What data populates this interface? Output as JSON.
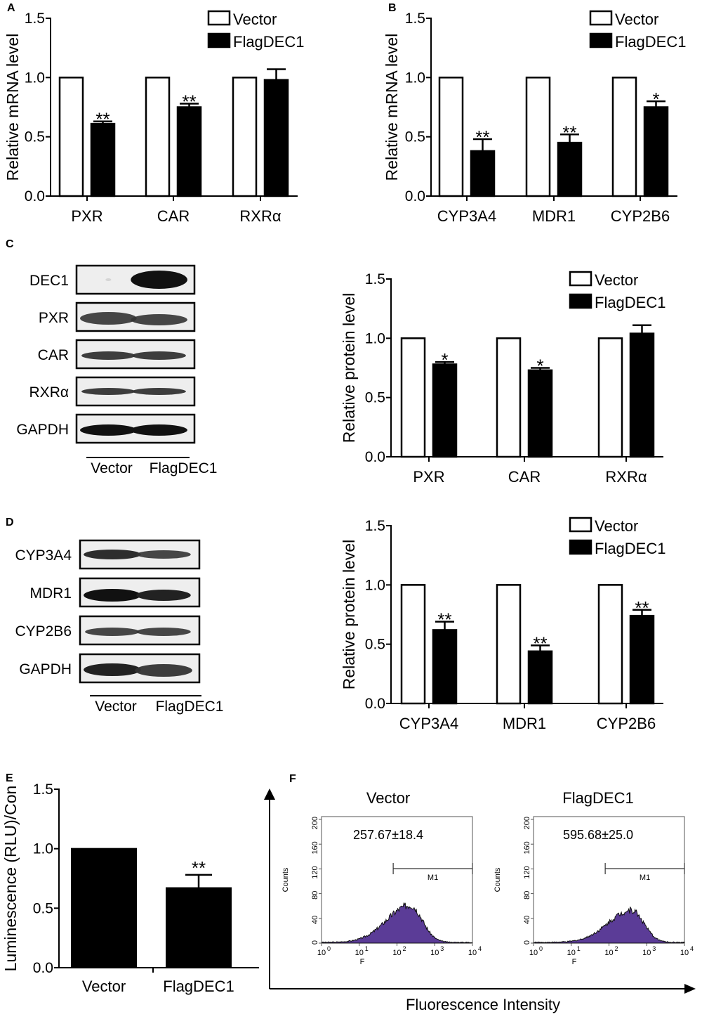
{
  "panels": {
    "A": "A",
    "B": "B",
    "C": "C",
    "D": "D",
    "E": "E",
    "F": "F"
  },
  "chart_data": [
    {
      "id": "A",
      "type": "bar",
      "ylabel": "Relative mRNA level",
      "ylim": [
        0,
        1.5
      ],
      "yticks": [
        "0.0",
        "0.5",
        "1.0",
        "1.5"
      ],
      "categories": [
        "PXR",
        "CAR",
        "RXRα"
      ],
      "legend": [
        "Vector",
        "FlagDEC1"
      ],
      "legend_position": "top-right",
      "series": [
        {
          "name": "Vector",
          "values": [
            1.0,
            1.0,
            1.0
          ],
          "errors": [
            0,
            0,
            0
          ],
          "fill": "#ffffff"
        },
        {
          "name": "FlagDEC1",
          "values": [
            0.61,
            0.75,
            0.98
          ],
          "errors": [
            0.02,
            0.03,
            0.09
          ],
          "fill": "#000000"
        }
      ],
      "significance": [
        "**",
        "**",
        ""
      ]
    },
    {
      "id": "B",
      "type": "bar",
      "ylabel": "Relative mRNA level",
      "ylim": [
        0,
        1.5
      ],
      "yticks": [
        "0.0",
        "0.5",
        "1.0",
        "1.5"
      ],
      "categories": [
        "CYP3A4",
        "MDR1",
        "CYP2B6"
      ],
      "legend": [
        "Vector",
        "FlagDEC1"
      ],
      "legend_position": "top-right",
      "series": [
        {
          "name": "Vector",
          "values": [
            1.0,
            1.0,
            1.0
          ],
          "errors": [
            0,
            0,
            0
          ],
          "fill": "#ffffff"
        },
        {
          "name": "FlagDEC1",
          "values": [
            0.38,
            0.45,
            0.75
          ],
          "errors": [
            0.1,
            0.07,
            0.05
          ],
          "fill": "#000000"
        }
      ],
      "significance": [
        "**",
        "**",
        "*"
      ]
    },
    {
      "id": "C",
      "type": "bar",
      "ylabel": "Relative protein level",
      "ylim": [
        0,
        1.5
      ],
      "yticks": [
        "0.0",
        "0.5",
        "1.0",
        "1.5"
      ],
      "categories": [
        "PXR",
        "CAR",
        "RXRα"
      ],
      "legend": [
        "Vector",
        "FlagDEC1"
      ],
      "legend_position": "top-right",
      "series": [
        {
          "name": "Vector",
          "values": [
            1.0,
            1.0,
            1.0
          ],
          "errors": [
            0,
            0,
            0
          ],
          "fill": "#ffffff"
        },
        {
          "name": "FlagDEC1",
          "values": [
            0.78,
            0.73,
            1.04
          ],
          "errors": [
            0.02,
            0.02,
            0.07
          ],
          "fill": "#000000"
        }
      ],
      "significance": [
        "*",
        "*",
        ""
      ]
    },
    {
      "id": "D",
      "type": "bar",
      "ylabel": "Relative protein level",
      "ylim": [
        0,
        1.5
      ],
      "yticks": [
        "0.0",
        "0.5",
        "1.0",
        "1.5"
      ],
      "categories": [
        "CYP3A4",
        "MDR1",
        "CYP2B6"
      ],
      "legend": [
        "Vector",
        "FlagDEC1"
      ],
      "legend_position": "top-right",
      "series": [
        {
          "name": "Vector",
          "values": [
            1.0,
            1.0,
            1.0
          ],
          "errors": [
            0,
            0,
            0
          ],
          "fill": "#ffffff"
        },
        {
          "name": "FlagDEC1",
          "values": [
            0.62,
            0.44,
            0.74
          ],
          "errors": [
            0.07,
            0.05,
            0.05
          ],
          "fill": "#000000"
        }
      ],
      "significance": [
        "**",
        "**",
        "**"
      ]
    },
    {
      "id": "E",
      "type": "bar",
      "ylabel": "Luminescence (RLU)/Con",
      "ylim": [
        0,
        1.5
      ],
      "yticks": [
        "0.0",
        "0.5",
        "1.0",
        "1.5"
      ],
      "categories": [
        "Vector",
        "FlagDEC1"
      ],
      "series": [
        {
          "name": "",
          "values": [
            1.0,
            0.67
          ],
          "errors": [
            0,
            0.11
          ],
          "fill": "#000000"
        }
      ],
      "significance": [
        "",
        "**"
      ]
    },
    {
      "id": "F",
      "type": "area",
      "xlabel": "Fluorescence Intensity",
      "subplots": [
        {
          "title": "Vector",
          "value_text": "257.67±18.4",
          "ylabel": "Counts",
          "xlabel": "F",
          "yticks": [
            "0",
            "40",
            "80",
            "120",
            "160",
            "200"
          ],
          "ylim": [
            0,
            200
          ],
          "xticks": [
            "10",
            "10",
            "10",
            "10",
            "10"
          ],
          "xtick_exponents": [
            "0",
            "1",
            "2",
            "3",
            "4"
          ],
          "gate_label": "M1",
          "gate_range_log10": [
            1.9,
            4.0
          ],
          "peak_log10": 2.35,
          "peak_count": 60,
          "fill": "#5b3c97"
        },
        {
          "title": "FlagDEC1",
          "value_text": "595.68±25.0",
          "ylabel": "Counts",
          "xlabel": "F",
          "yticks": [
            "0",
            "40",
            "80",
            "120",
            "160",
            "200"
          ],
          "ylim": [
            0,
            200
          ],
          "xticks": [
            "10",
            "10",
            "10",
            "10",
            "10"
          ],
          "xtick_exponents": [
            "0",
            "1",
            "2",
            "3",
            "4"
          ],
          "gate_label": "M1",
          "gate_range_log10": [
            1.9,
            4.0
          ],
          "peak_log10": 2.6,
          "peak_count": 52,
          "fill": "#5b3c97"
        }
      ]
    }
  ],
  "western_C": {
    "rows": [
      "DEC1",
      "PXR",
      "CAR",
      "RXRα",
      "GAPDH"
    ],
    "lanes": [
      "Vector",
      "FlagDEC1"
    ]
  },
  "western_D": {
    "rows": [
      "CYP3A4",
      "MDR1",
      "CYP2B6",
      "GAPDH"
    ],
    "lanes": [
      "Vector",
      "FlagDEC1"
    ]
  }
}
